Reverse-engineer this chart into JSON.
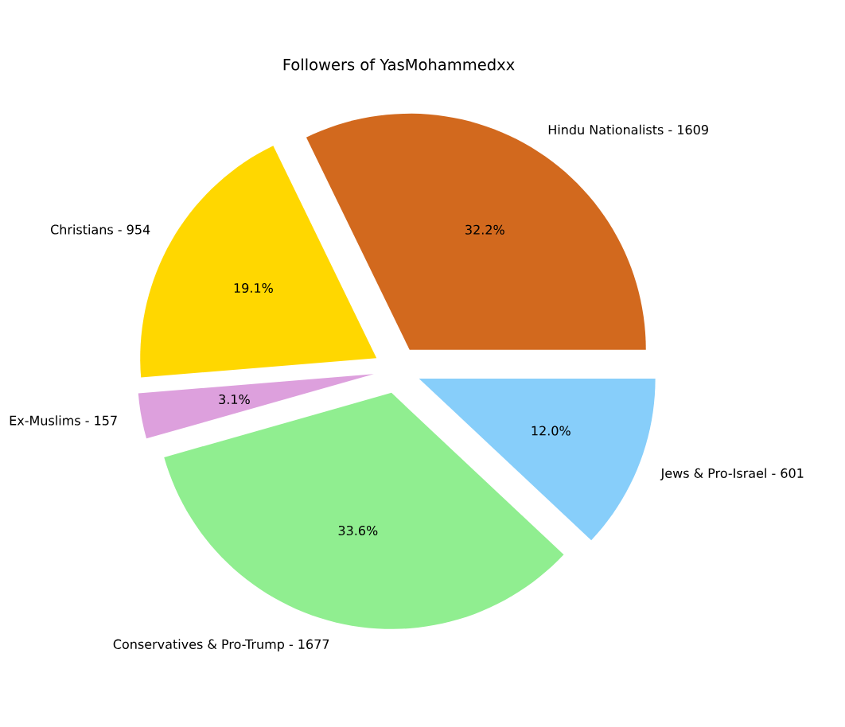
{
  "chart_data": {
    "type": "pie",
    "title": "Followers of YasMohammedxx",
    "categories": [
      "Hindu Nationalists - 1609",
      "Christians - 954",
      "Ex-Muslims - 157",
      "Conservatives & Pro-Trump - 1677",
      "Jews & Pro-Israel - 601"
    ],
    "values": [
      32.2,
      19.1,
      3.1,
      33.6,
      12.0
    ],
    "colors": [
      "#d2691e",
      "#ffd700",
      "#dda0dd",
      "#90ee90",
      "#87cefa"
    ],
    "value_labels": [
      "32.2%",
      "19.1%",
      "3.1%",
      "33.6%",
      "12.0%"
    ]
  }
}
